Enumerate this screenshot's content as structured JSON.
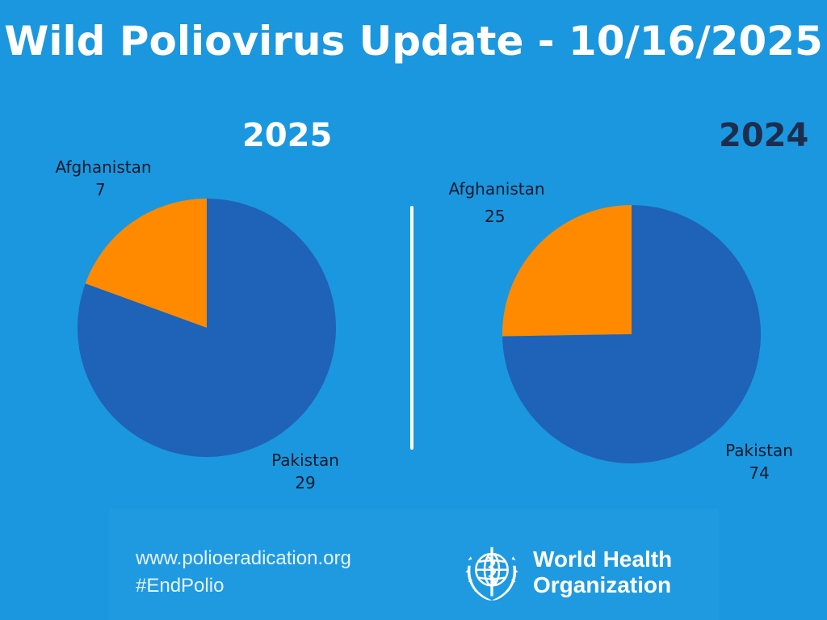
{
  "title": "Wild Poliovirus Update - 10/16/2025",
  "colors": {
    "background": "#1b97df",
    "pakistan": "#1e63b7",
    "afghanistan": "#ff8a00",
    "year_2025": "#ffffff",
    "year_2024": "#1c2d4d"
  },
  "chart_data": [
    {
      "type": "pie",
      "title": "2025",
      "categories": [
        "Afghanistan",
        "Pakistan"
      ],
      "values": [
        7,
        29
      ],
      "labels": [
        {
          "name": "Afghanistan",
          "value": "7"
        },
        {
          "name": "Pakistan",
          "value": "29"
        }
      ]
    },
    {
      "type": "pie",
      "title": "2024",
      "categories": [
        "Afghanistan",
        "Pakistan"
      ],
      "values": [
        25,
        74
      ],
      "labels": [
        {
          "name": "Afghanistan",
          "value": "25"
        },
        {
          "name": "Pakistan",
          "value": "74"
        }
      ]
    }
  ],
  "footer": {
    "url": "www.polioeradication.org",
    "hashtag": "#EndPolio",
    "org_line1": "World Health",
    "org_line2": "Organization",
    "logo_icon": "who-emblem-icon"
  }
}
